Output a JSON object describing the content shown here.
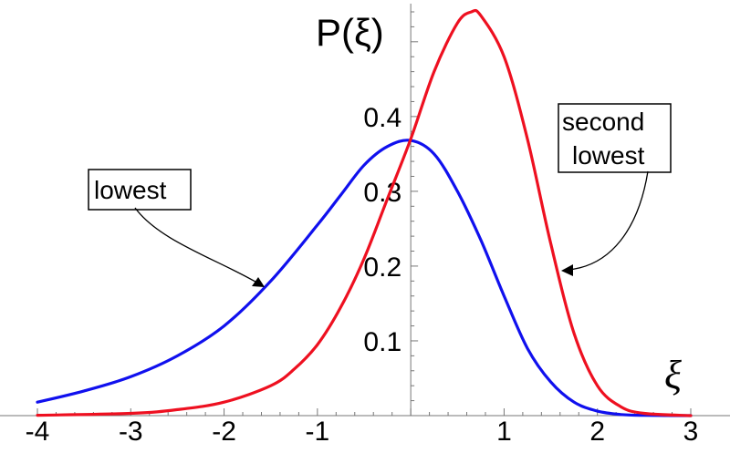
{
  "chart_data": {
    "type": "line",
    "xlabel": "ξ",
    "ylabel": "P(ξ)",
    "xlim": [
      -4,
      3
    ],
    "ylim": [
      0,
      0.54
    ],
    "x_ticks": [
      "-4",
      "-3",
      "-2",
      "-1",
      "1",
      "2",
      "3"
    ],
    "x_tick_values": [
      -4,
      -3,
      -2,
      -1,
      1,
      2,
      3
    ],
    "y_ticks": [
      "0.1",
      "0.2",
      "0.3",
      "0.4"
    ],
    "y_tick_values": [
      0.1,
      0.2,
      0.3,
      0.4
    ],
    "grid": false,
    "series": [
      {
        "name": "lowest",
        "color": "#1010ee",
        "x": [
          -4.0,
          -3.5,
          -3.0,
          -2.5,
          -2.0,
          -1.5,
          -1.0,
          -0.75,
          -0.5,
          -0.25,
          0.0,
          0.25,
          0.5,
          0.75,
          1.0,
          1.25,
          1.5,
          1.75,
          2.0,
          2.25,
          2.5,
          3.0
        ],
        "y": [
          0.018,
          0.033,
          0.052,
          0.08,
          0.12,
          0.18,
          0.255,
          0.295,
          0.335,
          0.36,
          0.368,
          0.35,
          0.3,
          0.235,
          0.16,
          0.09,
          0.045,
          0.018,
          0.006,
          0.0015,
          0.0004,
          0.0
        ]
      },
      {
        "name": "second lowest",
        "color": "#ee1020",
        "x": [
          -4.0,
          -3.0,
          -2.5,
          -2.0,
          -1.5,
          -1.25,
          -1.0,
          -0.75,
          -0.5,
          -0.25,
          0.0,
          0.25,
          0.5,
          0.65,
          0.75,
          1.0,
          1.25,
          1.5,
          1.75,
          2.0,
          2.25,
          2.5,
          3.0
        ],
        "y": [
          0.0005,
          0.003,
          0.008,
          0.018,
          0.04,
          0.062,
          0.095,
          0.145,
          0.21,
          0.29,
          0.37,
          0.46,
          0.525,
          0.54,
          0.535,
          0.48,
          0.37,
          0.23,
          0.11,
          0.04,
          0.012,
          0.003,
          0.0
        ]
      }
    ],
    "annotations": [
      {
        "text": "lowest",
        "target_series": "lowest",
        "target_x": -1.55
      },
      {
        "text_lines": [
          "second",
          "lowest"
        ],
        "target_series": "second lowest",
        "target_x": 1.6
      }
    ]
  }
}
